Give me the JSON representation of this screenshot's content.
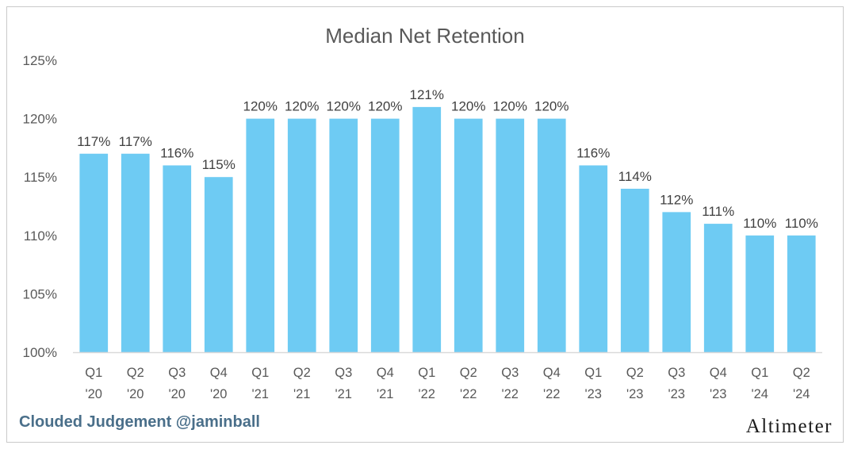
{
  "chart_data": {
    "type": "bar",
    "title": "Median Net Retention",
    "categories": [
      [
        "Q1",
        "'20"
      ],
      [
        "Q2",
        "'20"
      ],
      [
        "Q3",
        "'20"
      ],
      [
        "Q4",
        "'20"
      ],
      [
        "Q1",
        "'21"
      ],
      [
        "Q2",
        "'21"
      ],
      [
        "Q3",
        "'21"
      ],
      [
        "Q4",
        "'21"
      ],
      [
        "Q1",
        "'22"
      ],
      [
        "Q2",
        "'22"
      ],
      [
        "Q3",
        "'22"
      ],
      [
        "Q4",
        "'22"
      ],
      [
        "Q1",
        "'23"
      ],
      [
        "Q2",
        "'23"
      ],
      [
        "Q3",
        "'23"
      ],
      [
        "Q4",
        "'23"
      ],
      [
        "Q1",
        "'24"
      ],
      [
        "Q2",
        "'24"
      ]
    ],
    "values": [
      117,
      117,
      116,
      115,
      120,
      120,
      120,
      120,
      121,
      120,
      120,
      120,
      116,
      114,
      112,
      111,
      110,
      110
    ],
    "data_labels": [
      "117%",
      "117%",
      "116%",
      "115%",
      "120%",
      "120%",
      "120%",
      "120%",
      "121%",
      "120%",
      "120%",
      "120%",
      "116%",
      "114%",
      "112%",
      "111%",
      "110%",
      "110%"
    ],
    "ylim": [
      100,
      125
    ],
    "yticks": [
      100,
      105,
      110,
      115,
      120,
      125
    ],
    "ytick_labels": [
      "100%",
      "105%",
      "110%",
      "115%",
      "120%",
      "125%"
    ],
    "grid": false,
    "bar_color": "#6ecbf3",
    "axis_color": "#d9d9d9"
  },
  "footer": {
    "left": "Clouded Judgement @jaminball",
    "right": "Altimeter"
  },
  "colors": {
    "footer_left": "#4a6f8a",
    "title": "#595959"
  }
}
